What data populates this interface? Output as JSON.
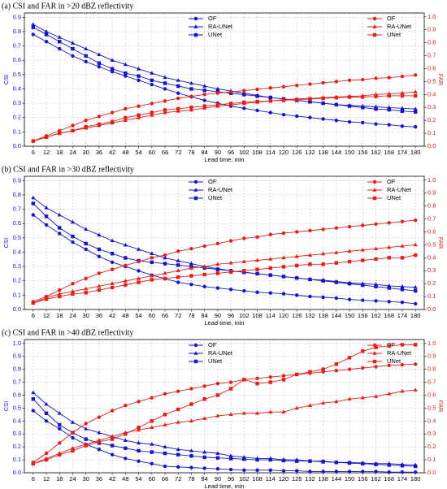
{
  "chart_data": [
    {
      "type": "line",
      "title": "(a) CSI and FAR in >20 dBZ reflectivity",
      "x_label": "Lead time, min",
      "y_label": "CSI",
      "y2_label": "FAR",
      "grid": true,
      "x": [
        6,
        12,
        18,
        24,
        30,
        36,
        42,
        48,
        54,
        60,
        66,
        72,
        78,
        84,
        90,
        96,
        102,
        108,
        114,
        120,
        126,
        132,
        138,
        144,
        150,
        156,
        162,
        168,
        174,
        180
      ],
      "xticks": [
        6,
        12,
        18,
        24,
        30,
        36,
        42,
        48,
        54,
        60,
        66,
        72,
        78,
        84,
        90,
        96,
        102,
        108,
        114,
        120,
        126,
        132,
        138,
        144,
        150,
        156,
        162,
        168,
        174,
        180
      ],
      "xlim": [
        2,
        184
      ],
      "ylim": [
        0,
        0.93
      ],
      "yticks": [
        {
          "value": 0,
          "label": "0.0"
        },
        0.1,
        0.2,
        0.3,
        0.4,
        0.5,
        0.6,
        0.7,
        0.8,
        0.9
      ],
      "y2lim": [
        0,
        1.03
      ],
      "y2ticks": [
        {
          "value": 0,
          "label": "0.0"
        },
        0.1,
        0.2,
        0.3,
        0.4,
        0.5,
        0.6,
        0.7,
        0.8,
        0.9,
        {
          "value": 1,
          "label": "1.0"
        }
      ],
      "series": [
        {
          "name": "OF",
          "color": "#1515c8",
          "marker": "o",
          "axis": "y",
          "values": [
            0.78,
            0.73,
            0.68,
            0.63,
            0.59,
            0.555,
            0.52,
            0.49,
            0.46,
            0.43,
            0.4,
            0.37,
            0.345,
            0.32,
            0.3,
            0.28,
            0.265,
            0.25,
            0.235,
            0.22,
            0.21,
            0.2,
            0.19,
            0.18,
            0.17,
            0.165,
            0.155,
            0.15,
            0.14,
            0.135
          ]
        },
        {
          "name": "RA-UNet",
          "color": "#1515c8",
          "marker": "^",
          "axis": "y",
          "values": [
            0.85,
            0.8,
            0.76,
            0.72,
            0.68,
            0.64,
            0.6,
            0.57,
            0.54,
            0.51,
            0.48,
            0.46,
            0.44,
            0.42,
            0.4,
            0.385,
            0.37,
            0.355,
            0.34,
            0.33,
            0.32,
            0.31,
            0.3,
            0.29,
            0.285,
            0.28,
            0.275,
            0.27,
            0.265,
            0.26
          ]
        },
        {
          "name": "UNet",
          "color": "#1515c8",
          "marker": "s",
          "axis": "y",
          "values": [
            0.83,
            0.78,
            0.73,
            0.68,
            0.63,
            0.58,
            0.54,
            0.51,
            0.49,
            0.46,
            0.44,
            0.42,
            0.4,
            0.39,
            0.38,
            0.37,
            0.36,
            0.35,
            0.34,
            0.33,
            0.32,
            0.31,
            0.3,
            0.29,
            0.28,
            0.27,
            0.26,
            0.255,
            0.245,
            0.24
          ]
        },
        {
          "name": "OF",
          "color": "#e0201b",
          "marker": "o",
          "axis": "y2",
          "values": [
            0.04,
            0.08,
            0.12,
            0.16,
            0.2,
            0.23,
            0.26,
            0.29,
            0.31,
            0.33,
            0.35,
            0.37,
            0.385,
            0.4,
            0.41,
            0.42,
            0.43,
            0.44,
            0.45,
            0.46,
            0.47,
            0.48,
            0.49,
            0.5,
            0.51,
            0.515,
            0.525,
            0.53,
            0.54,
            0.55
          ]
        },
        {
          "name": "RA-UNet",
          "color": "#e0201b",
          "marker": "^",
          "axis": "y2",
          "values": [
            0.04,
            0.07,
            0.1,
            0.12,
            0.14,
            0.16,
            0.18,
            0.2,
            0.22,
            0.24,
            0.26,
            0.27,
            0.28,
            0.295,
            0.31,
            0.32,
            0.33,
            0.34,
            0.35,
            0.36,
            0.365,
            0.37,
            0.375,
            0.38,
            0.385,
            0.39,
            0.4,
            0.405,
            0.41,
            0.42
          ]
        },
        {
          "name": "UNet",
          "color": "#e0201b",
          "marker": "s",
          "axis": "y2",
          "values": [
            0.04,
            0.07,
            0.1,
            0.12,
            0.15,
            0.17,
            0.19,
            0.22,
            0.24,
            0.26,
            0.28,
            0.29,
            0.3,
            0.31,
            0.32,
            0.33,
            0.34,
            0.345,
            0.35,
            0.355,
            0.36,
            0.365,
            0.37,
            0.375,
            0.38,
            0.38,
            0.385,
            0.39,
            0.39,
            0.39
          ]
        }
      ]
    },
    {
      "type": "line",
      "title": "(b) CSI and FAR in >30 dBZ reflectivity",
      "x_label": "Lead time, min",
      "y_label": "CSI",
      "y2_label": "FAR",
      "grid": true,
      "x": [
        6,
        12,
        18,
        24,
        30,
        36,
        42,
        48,
        54,
        60,
        66,
        72,
        78,
        84,
        90,
        96,
        102,
        108,
        114,
        120,
        126,
        132,
        138,
        144,
        150,
        156,
        162,
        168,
        174,
        180
      ],
      "xticks": [
        6,
        12,
        18,
        24,
        30,
        36,
        42,
        48,
        54,
        60,
        66,
        72,
        78,
        84,
        90,
        96,
        102,
        108,
        114,
        120,
        126,
        132,
        138,
        144,
        150,
        156,
        162,
        168,
        174,
        180
      ],
      "xlim": [
        2,
        184
      ],
      "ylim": [
        0,
        0.93
      ],
      "yticks": [
        {
          "value": 0,
          "label": "0.0"
        },
        0.1,
        0.2,
        0.3,
        0.4,
        0.5,
        0.6,
        0.7,
        0.8,
        0.9
      ],
      "y2lim": [
        0,
        1.03
      ],
      "y2ticks": [
        {
          "value": 0,
          "label": "0.0"
        },
        0.1,
        0.2,
        0.3,
        0.4,
        0.5,
        0.6,
        0.7,
        0.8,
        0.9,
        {
          "value": 1,
          "label": "1.0"
        }
      ],
      "series": [
        {
          "name": "OF",
          "color": "#1515c8",
          "marker": "o",
          "axis": "y",
          "values": [
            0.66,
            0.59,
            0.53,
            0.47,
            0.42,
            0.37,
            0.33,
            0.3,
            0.27,
            0.24,
            0.215,
            0.19,
            0.175,
            0.16,
            0.15,
            0.14,
            0.13,
            0.12,
            0.115,
            0.11,
            0.1,
            0.09,
            0.085,
            0.08,
            0.07,
            0.065,
            0.06,
            0.055,
            0.05,
            0.04
          ]
        },
        {
          "name": "RA-UNet",
          "color": "#1515c8",
          "marker": "^",
          "axis": "y",
          "values": [
            0.78,
            0.71,
            0.66,
            0.61,
            0.56,
            0.52,
            0.48,
            0.45,
            0.42,
            0.39,
            0.36,
            0.34,
            0.32,
            0.3,
            0.285,
            0.27,
            0.26,
            0.25,
            0.24,
            0.23,
            0.22,
            0.21,
            0.205,
            0.195,
            0.185,
            0.18,
            0.175,
            0.165,
            0.16,
            0.155
          ]
        },
        {
          "name": "UNet",
          "color": "#1515c8",
          "marker": "s",
          "axis": "y",
          "values": [
            0.74,
            0.65,
            0.57,
            0.51,
            0.46,
            0.42,
            0.39,
            0.36,
            0.34,
            0.33,
            0.32,
            0.31,
            0.3,
            0.29,
            0.28,
            0.27,
            0.26,
            0.25,
            0.24,
            0.23,
            0.22,
            0.21,
            0.2,
            0.19,
            0.18,
            0.17,
            0.16,
            0.15,
            0.14,
            0.13
          ]
        },
        {
          "name": "OF",
          "color": "#e0201b",
          "marker": "o",
          "axis": "y2",
          "values": [
            0.06,
            0.1,
            0.15,
            0.2,
            0.24,
            0.28,
            0.31,
            0.34,
            0.37,
            0.4,
            0.42,
            0.45,
            0.47,
            0.49,
            0.51,
            0.53,
            0.55,
            0.56,
            0.58,
            0.59,
            0.6,
            0.61,
            0.62,
            0.63,
            0.64,
            0.65,
            0.66,
            0.67,
            0.68,
            0.69
          ]
        },
        {
          "name": "RA-UNet",
          "color": "#e0201b",
          "marker": "^",
          "axis": "y2",
          "values": [
            0.05,
            0.09,
            0.12,
            0.14,
            0.16,
            0.18,
            0.2,
            0.22,
            0.24,
            0.26,
            0.28,
            0.3,
            0.32,
            0.33,
            0.35,
            0.36,
            0.37,
            0.38,
            0.39,
            0.4,
            0.41,
            0.42,
            0.43,
            0.44,
            0.45,
            0.46,
            0.47,
            0.48,
            0.49,
            0.5
          ]
        },
        {
          "name": "UNet",
          "color": "#e0201b",
          "marker": "s",
          "axis": "y2",
          "values": [
            0.05,
            0.08,
            0.1,
            0.12,
            0.13,
            0.15,
            0.17,
            0.19,
            0.21,
            0.23,
            0.24,
            0.25,
            0.26,
            0.27,
            0.28,
            0.29,
            0.3,
            0.31,
            0.32,
            0.33,
            0.34,
            0.35,
            0.35,
            0.36,
            0.37,
            0.38,
            0.39,
            0.4,
            0.4,
            0.42
          ]
        }
      ]
    },
    {
      "type": "line",
      "title": "(c) CSI and FAR in >40 dBZ reflectivity",
      "x_label": "Lead time, min",
      "y_label": "CSI",
      "y2_label": "FAR",
      "grid": true,
      "x": [
        6,
        12,
        18,
        24,
        30,
        36,
        42,
        48,
        54,
        60,
        66,
        72,
        78,
        84,
        90,
        96,
        102,
        108,
        114,
        120,
        126,
        132,
        138,
        144,
        150,
        156,
        162,
        168,
        174,
        180
      ],
      "xticks": [
        6,
        12,
        18,
        24,
        30,
        36,
        42,
        48,
        54,
        60,
        66,
        72,
        78,
        84,
        90,
        96,
        102,
        108,
        114,
        120,
        126,
        132,
        138,
        144,
        150,
        156,
        162,
        168,
        174,
        180
      ],
      "xlim": [
        2,
        184
      ],
      "ylim": [
        0,
        1.03
      ],
      "yticks": [
        {
          "value": 0,
          "label": "0.0"
        },
        0.1,
        0.2,
        0.3,
        0.4,
        0.5,
        0.6,
        0.7,
        0.8,
        0.9,
        {
          "value": 1,
          "label": "1.0"
        }
      ],
      "y2lim": [
        0,
        1.03
      ],
      "y2ticks": [
        {
          "value": 0,
          "label": "0.0"
        },
        0.1,
        0.2,
        0.3,
        0.4,
        0.5,
        0.6,
        0.7,
        0.8,
        0.9,
        {
          "value": 1,
          "label": "1.0"
        }
      ],
      "series": [
        {
          "name": "OF",
          "color": "#1515c8",
          "marker": "o",
          "axis": "y",
          "values": [
            0.48,
            0.4,
            0.34,
            0.27,
            0.22,
            0.18,
            0.14,
            0.11,
            0.09,
            0.07,
            0.05,
            0.045,
            0.04,
            0.035,
            0.03,
            0.025,
            0.02,
            0.02,
            0.02,
            0.015,
            0.015,
            0.01,
            0.01,
            0.01,
            0.01,
            0.01,
            0.01,
            0.005,
            0.005,
            0.005
          ]
        },
        {
          "name": "RA-UNet",
          "color": "#1515c8",
          "marker": "^",
          "axis": "y",
          "values": [
            0.62,
            0.53,
            0.46,
            0.39,
            0.34,
            0.31,
            0.28,
            0.25,
            0.23,
            0.22,
            0.2,
            0.18,
            0.17,
            0.16,
            0.15,
            0.13,
            0.12,
            0.11,
            0.11,
            0.1,
            0.1,
            0.09,
            0.09,
            0.08,
            0.08,
            0.075,
            0.07,
            0.07,
            0.065,
            0.06
          ]
        },
        {
          "name": "UNet",
          "color": "#1515c8",
          "marker": "s",
          "axis": "y",
          "values": [
            0.57,
            0.46,
            0.37,
            0.31,
            0.26,
            0.23,
            0.21,
            0.19,
            0.17,
            0.16,
            0.15,
            0.14,
            0.13,
            0.12,
            0.115,
            0.11,
            0.105,
            0.1,
            0.1,
            0.095,
            0.09,
            0.09,
            0.085,
            0.08,
            0.075,
            0.07,
            0.065,
            0.06,
            0.055,
            0.05
          ]
        },
        {
          "name": "OF",
          "color": "#e0201b",
          "marker": "o",
          "axis": "y2",
          "values": [
            0.08,
            0.15,
            0.23,
            0.31,
            0.38,
            0.43,
            0.48,
            0.52,
            0.55,
            0.58,
            0.61,
            0.63,
            0.65,
            0.67,
            0.69,
            0.7,
            0.72,
            0.73,
            0.74,
            0.75,
            0.76,
            0.77,
            0.78,
            0.79,
            0.8,
            0.81,
            0.82,
            0.83,
            0.835,
            0.84
          ]
        },
        {
          "name": "RA-UNet",
          "color": "#e0201b",
          "marker": "^",
          "axis": "y2",
          "values": [
            0.07,
            0.11,
            0.15,
            0.19,
            0.22,
            0.25,
            0.28,
            0.31,
            0.33,
            0.35,
            0.37,
            0.39,
            0.4,
            0.42,
            0.44,
            0.45,
            0.46,
            0.46,
            0.47,
            0.47,
            0.5,
            0.52,
            0.54,
            0.55,
            0.57,
            0.58,
            0.59,
            0.61,
            0.63,
            0.64
          ]
        },
        {
          "name": "UNet",
          "color": "#e0201b",
          "marker": "s",
          "axis": "y2",
          "values": [
            0.07,
            0.1,
            0.14,
            0.17,
            0.21,
            0.24,
            0.26,
            0.3,
            0.35,
            0.4,
            0.45,
            0.49,
            0.53,
            0.57,
            0.6,
            0.65,
            0.72,
            0.69,
            0.7,
            0.72,
            0.76,
            0.78,
            0.8,
            0.84,
            0.89,
            0.94,
            0.97,
            0.98,
            0.99,
            0.99
          ]
        }
      ]
    }
  ]
}
